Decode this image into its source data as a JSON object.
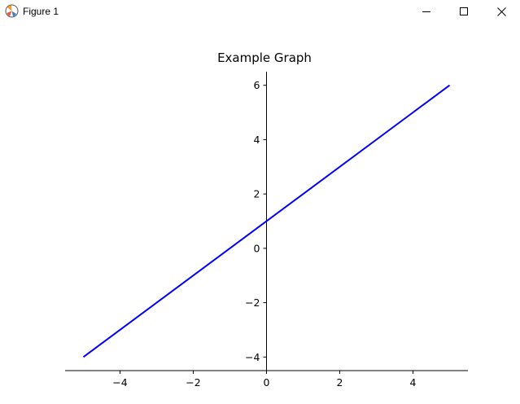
{
  "window": {
    "title": "Figure 1",
    "buttons": {
      "minimize": "minimize-icon",
      "maximize": "maximize-icon",
      "close": "close-icon"
    }
  },
  "chart_data": {
    "type": "line",
    "title": "Example Graph",
    "xlabel": "",
    "ylabel": "",
    "xlim": [
      -5.5,
      5.5
    ],
    "ylim": [
      -4.5,
      6.5
    ],
    "xticks": [
      -4,
      -2,
      0,
      2,
      4
    ],
    "yticks": [
      -4,
      -2,
      0,
      2,
      4,
      6
    ],
    "xtick_labels": [
      "−4",
      "−2",
      "0",
      "2",
      "4"
    ],
    "ytick_labels": [
      "−4",
      "−2",
      "0",
      "2",
      "4",
      "6"
    ],
    "series": [
      {
        "x": [
          -5,
          5
        ],
        "y": [
          -4,
          6
        ],
        "color": "#0000ff"
      }
    ],
    "spines": "centered at origin",
    "grid": false
  }
}
